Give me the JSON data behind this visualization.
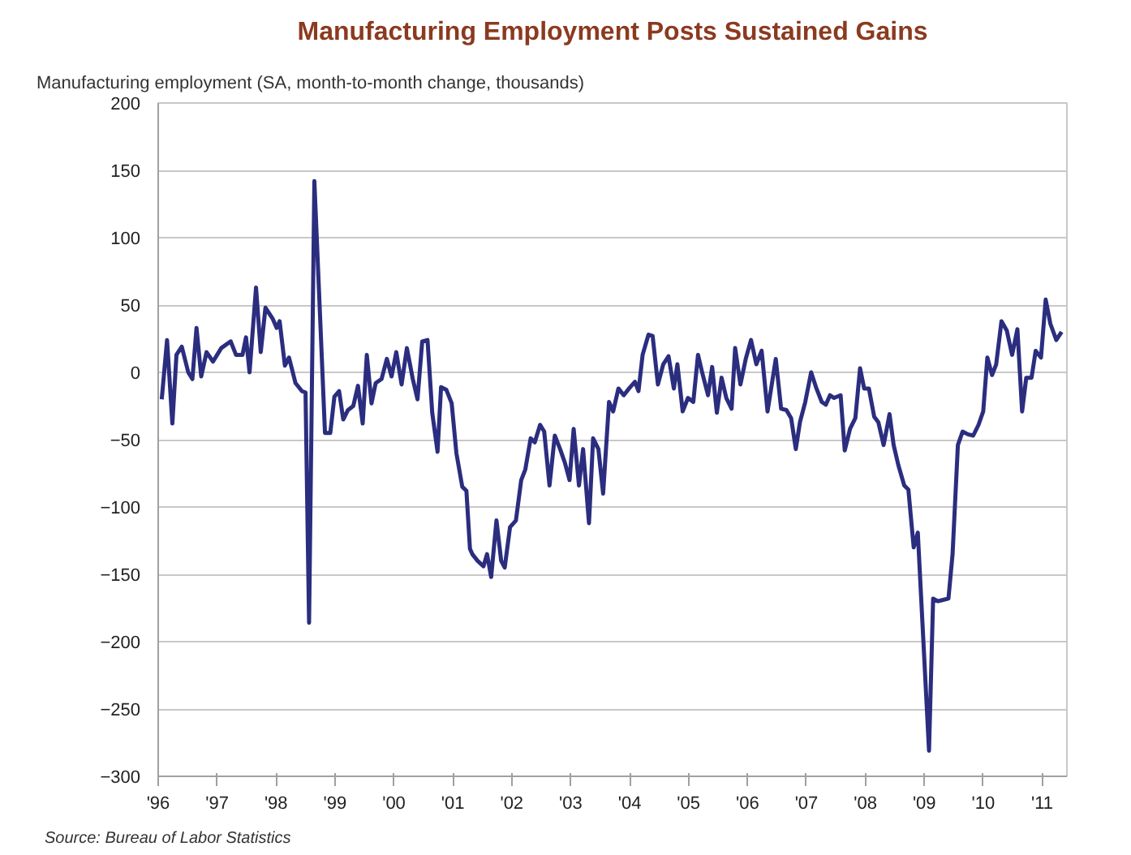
{
  "chart_data": {
    "type": "line",
    "title": "Manufacturing Employment Posts Sustained Gains",
    "ylabel": "Manufacturing employment (SA, month-to-month change, thousands)",
    "annotations": [
      "Source: Bureau of Labor Statistics"
    ],
    "series": [
      {
        "color": "#2b2d7f",
        "x": [
          1996.06,
          1996.15,
          1996.24,
          1996.31,
          1996.4,
          1996.51,
          1996.58,
          1996.65,
          1996.73,
          1996.82,
          1996.93,
          1997.07,
          1997.23,
          1997.32,
          1997.43,
          1997.49,
          1997.55,
          1997.66,
          1997.74,
          1997.82,
          1997.94,
          1998.01,
          1998.06,
          1998.15,
          1998.22,
          1998.33,
          1998.44,
          1998.5,
          1998.56,
          1998.65,
          1998.83,
          1998.92,
          1998.99,
          1999.07,
          1999.14,
          1999.22,
          1999.31,
          1999.39,
          1999.47,
          1999.54,
          1999.62,
          1999.69,
          1999.79,
          1999.88,
          1999.96,
          2000.04,
          2000.13,
          2000.22,
          2000.32,
          2000.4,
          2000.48,
          2000.57,
          2000.65,
          2000.74,
          2000.8,
          2000.89,
          2000.98,
          2001.06,
          2001.16,
          2001.23,
          2001.29,
          2001.33,
          2001.42,
          2001.52,
          2001.58,
          2001.65,
          2001.74,
          2001.82,
          2001.88,
          2001.97,
          2002.07,
          2002.16,
          2002.23,
          2002.32,
          2002.39,
          2002.48,
          2002.55,
          2002.64,
          2002.73,
          2002.82,
          2002.9,
          2002.98,
          2003.05,
          2003.14,
          2003.21,
          2003.31,
          2003.38,
          2003.47,
          2003.55,
          2003.65,
          2003.72,
          2003.81,
          2003.9,
          2003.99,
          2004.09,
          2004.15,
          2004.22,
          2004.32,
          2004.39,
          2004.48,
          2004.57,
          2004.66,
          2004.75,
          2004.81,
          2004.9,
          2004.99,
          2005.08,
          2005.16,
          2005.23,
          2005.33,
          2005.4,
          2005.48,
          2005.56,
          2005.64,
          2005.73,
          2005.79,
          2005.88,
          2005.97,
          2006.06,
          2006.15,
          2006.24,
          2006.34,
          2006.48,
          2006.57,
          2006.66,
          2006.74,
          2006.82,
          2006.89,
          2006.98,
          2007.08,
          2007.17,
          2007.26,
          2007.33,
          2007.4,
          2007.47,
          2007.58,
          2007.65,
          2007.74,
          2007.83,
          2007.91,
          2007.98,
          2008.06,
          2008.15,
          2008.22,
          2008.31,
          2008.41,
          2008.48,
          2008.56,
          2008.66,
          2008.73,
          2008.82,
          2008.89,
          2009.08,
          2009.15,
          2009.23,
          2009.32,
          2009.41,
          2009.48,
          2009.57,
          2009.65,
          2009.74,
          2009.83,
          2009.92,
          2010.0,
          2010.07,
          2010.15,
          2010.22,
          2010.31,
          2010.4,
          2010.49,
          2010.58,
          2010.66,
          2010.73,
          2010.82,
          2010.89,
          2010.98,
          2011.06,
          2011.14,
          2011.24,
          2011.33
        ],
        "values": [
          -20,
          24,
          -38,
          13,
          19,
          0,
          -5,
          33,
          -3,
          15,
          8,
          18,
          23,
          13,
          13,
          26,
          0,
          63,
          15,
          48,
          40,
          33,
          38,
          5,
          11,
          -8,
          -14,
          -15,
          -186,
          142,
          -45,
          -45,
          -18,
          -14,
          -35,
          -28,
          -25,
          -10,
          -38,
          13,
          -23,
          -8,
          -5,
          10,
          -3,
          15,
          -9,
          18,
          -5,
          -20,
          23,
          24,
          -30,
          -59,
          -11,
          -13,
          -23,
          -60,
          -85,
          -88,
          -131,
          -135,
          -140,
          -144,
          -135,
          -152,
          -110,
          -140,
          -145,
          -115,
          -110,
          -80,
          -72,
          -49,
          -52,
          -39,
          -44,
          -84,
          -47,
          -57,
          -67,
          -80,
          -42,
          -84,
          -57,
          -112,
          -49,
          -57,
          -90,
          -22,
          -29,
          -12,
          -17,
          -12,
          -7,
          -14,
          13,
          28,
          27,
          -9,
          6,
          12,
          -12,
          6,
          -29,
          -19,
          -22,
          13,
          0,
          -17,
          4,
          -30,
          -4,
          -19,
          -27,
          18,
          -9,
          10,
          24,
          6,
          16,
          -29,
          10,
          -27,
          -28,
          -34,
          -57,
          -37,
          -22,
          0,
          -12,
          -22,
          -24,
          -17,
          -19,
          -17,
          -58,
          -42,
          -34,
          3,
          -12,
          -12,
          -33,
          -37,
          -54,
          -31,
          -54,
          -69,
          -84,
          -87,
          -130,
          -119,
          -281,
          -168,
          -170,
          -169,
          -168,
          -135,
          -54,
          -44,
          -46,
          -47,
          -39,
          -29,
          11,
          -2,
          6,
          38,
          31,
          13,
          32,
          -29,
          -4,
          -4,
          16,
          11,
          54,
          36,
          24,
          30
        ]
      }
    ],
    "xlim": [
      1996,
      2011.42
    ],
    "xticks": [
      {
        "value": 1996,
        "label": "'96"
      },
      {
        "value": 1997,
        "label": "'97"
      },
      {
        "value": 1998,
        "label": "'98"
      },
      {
        "value": 1999,
        "label": "'99"
      },
      {
        "value": 2000,
        "label": "'00"
      },
      {
        "value": 2001,
        "label": "'01"
      },
      {
        "value": 2002,
        "label": "'02"
      },
      {
        "value": 2003,
        "label": "'03"
      },
      {
        "value": 2004,
        "label": "'04"
      },
      {
        "value": 2005,
        "label": "'05"
      },
      {
        "value": 2006,
        "label": "'06"
      },
      {
        "value": 2007,
        "label": "'07"
      },
      {
        "value": 2008,
        "label": "'08"
      },
      {
        "value": 2009,
        "label": "'09"
      },
      {
        "value": 2010,
        "label": "'10"
      },
      {
        "value": 2011,
        "label": "'11"
      }
    ],
    "ylim": [
      -300,
      200
    ],
    "yticks": [
      -300,
      -250,
      -200,
      -150,
      -100,
      -50,
      0,
      50,
      100,
      150,
      200
    ],
    "grid": "y"
  }
}
